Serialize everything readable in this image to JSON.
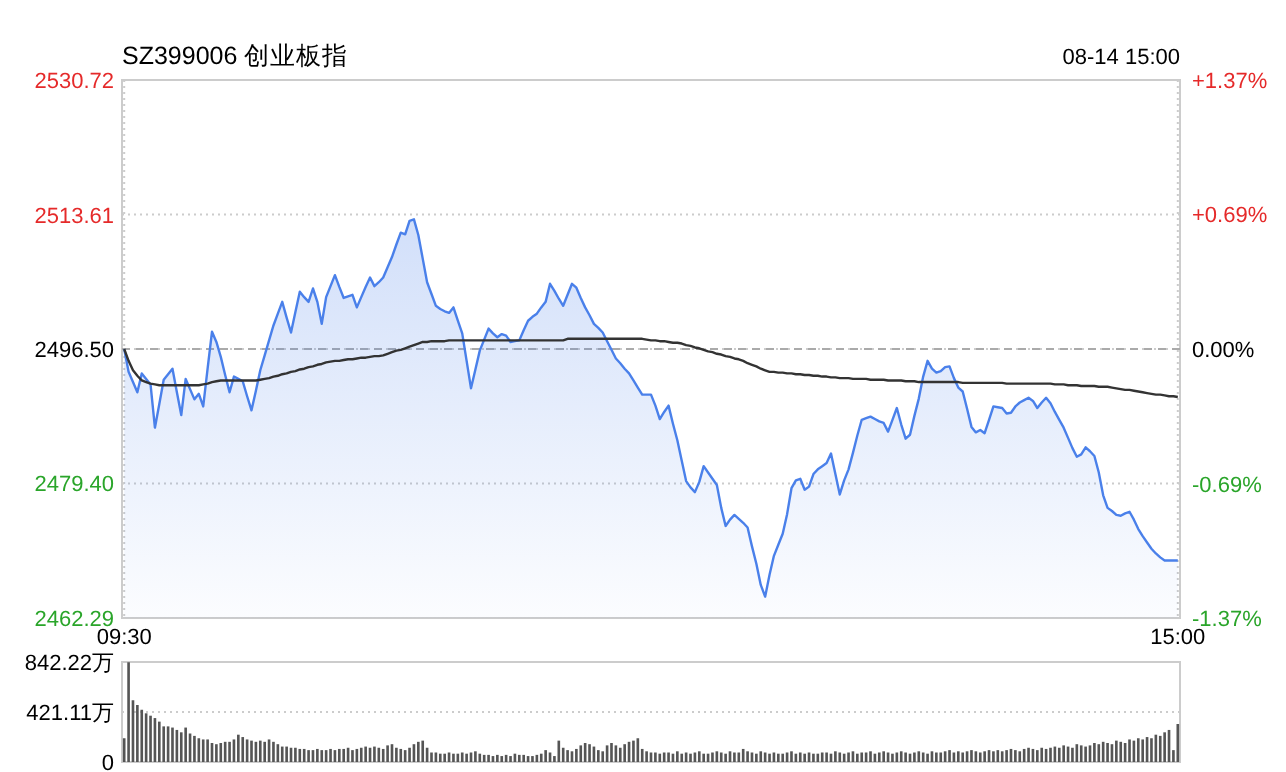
{
  "chart_data": [
    {
      "type": "area",
      "title": "SZ399006 创业板指",
      "annotations": [
        "08-14 15:00"
      ],
      "categories": [
        "09:30",
        null,
        null,
        null,
        null,
        null,
        null,
        null,
        null,
        null,
        null,
        null,
        null,
        null,
        null,
        null,
        null,
        null,
        null,
        null,
        null,
        null,
        null,
        null,
        null,
        null,
        null,
        null,
        null,
        null,
        null,
        null,
        null,
        null,
        null,
        null,
        null,
        null,
        null,
        null,
        null,
        null,
        null,
        null,
        null,
        null,
        null,
        null,
        null,
        null,
        null,
        null,
        null,
        null,
        null,
        null,
        null,
        null,
        null,
        null,
        null,
        null,
        null,
        null,
        null,
        null,
        null,
        null,
        null,
        null,
        null,
        null,
        null,
        null,
        null,
        null,
        null,
        null,
        null,
        null,
        null,
        null,
        null,
        null,
        null,
        null,
        null,
        null,
        null,
        null,
        null,
        null,
        null,
        null,
        null,
        null,
        null,
        null,
        null,
        null,
        null,
        null,
        null,
        null,
        null,
        null,
        null,
        null,
        null,
        null,
        null,
        null,
        null,
        null,
        null,
        null,
        null,
        null,
        null,
        null,
        null,
        null,
        null,
        null,
        null,
        null,
        null,
        null,
        null,
        null,
        null,
        null,
        null,
        null,
        null,
        null,
        null,
        null,
        null,
        null,
        null,
        null,
        null,
        null,
        null,
        null,
        null,
        null,
        null,
        null,
        null,
        null,
        null,
        null,
        null,
        null,
        null,
        null,
        null,
        null,
        null,
        null,
        null,
        null,
        null,
        null,
        null,
        null,
        null,
        null,
        null,
        null,
        null,
        null,
        null,
        null,
        null,
        null,
        null,
        null,
        null,
        null,
        null,
        null,
        null,
        null,
        null,
        null,
        null,
        null,
        null,
        null,
        null,
        null,
        null,
        null,
        null,
        null,
        null,
        null,
        null,
        null,
        null,
        null,
        null,
        null,
        null,
        null,
        null,
        null,
        null,
        null,
        null,
        null,
        null,
        null,
        null,
        null,
        null,
        null,
        null,
        null,
        null,
        null,
        null,
        null,
        null,
        null,
        null,
        null,
        null,
        null,
        null,
        null,
        null,
        null,
        null,
        null,
        null,
        null,
        "15:00"
      ],
      "ylim": [
        2462.29,
        2530.72
      ],
      "yticks": [
        2462.29,
        {
          "value": 2479.4,
          "label": "2479.40"
        },
        {
          "value": 2496.5,
          "label": "2496.50"
        },
        2513.61,
        2530.72
      ],
      "y2lim": [
        -1.37,
        1.37
      ],
      "y2ticks": [
        {
          "value": -1.37,
          "label": "-1.37%"
        },
        {
          "value": -0.69,
          "label": "-0.69%"
        },
        {
          "value": 0,
          "label": "0.00%"
        },
        {
          "value": 0.69,
          "label": "+0.69%"
        },
        {
          "value": 1.37,
          "label": "+1.37%"
        }
      ],
      "grid": true,
      "marker": "none",
      "ref_lines": [
        {
          "axis": "y",
          "value": 2496.5,
          "line_style": "dashed",
          "color": "#aaaaaa"
        }
      ],
      "series": [
        {
          "color": "#4a80ea",
          "values": [
            2496.5,
            2493.6,
            2492.3,
            2491.0,
            2493.4,
            2492.7,
            2492.0,
            2486.5,
            2489.5,
            2492.6,
            2493.3,
            2494.0,
            2491.0,
            2488.1,
            2492.7,
            2491.4,
            2490.1,
            2490.8,
            2489.2,
            2494.0,
            2498.7,
            2497.4,
            2495.5,
            2493.2,
            2491.0,
            2493.0,
            2492.7,
            2492.4,
            2490.5,
            2488.7,
            2491.2,
            2493.8,
            2495.7,
            2497.6,
            2499.5,
            2501.0,
            2502.5,
            2500.5,
            2498.6,
            2501.2,
            2503.8,
            2503.1,
            2502.5,
            2504.2,
            2502.5,
            2499.7,
            2503.1,
            2504.5,
            2505.9,
            2504.4,
            2503.0,
            2503.2,
            2503.4,
            2501.8,
            2503.1,
            2504.4,
            2505.6,
            2504.5,
            2505.0,
            2505.6,
            2506.9,
            2508.2,
            2509.8,
            2511.3,
            2511.1,
            2512.8,
            2513.0,
            2511.0,
            2508.0,
            2505.0,
            2503.5,
            2502.0,
            2501.6,
            2501.3,
            2501.1,
            2501.8,
            2500.1,
            2498.5,
            2495.0,
            2491.5,
            2493.9,
            2496.3,
            2497.7,
            2499.1,
            2498.5,
            2498.0,
            2498.4,
            2498.2,
            2497.4,
            2497.5,
            2497.6,
            2498.9,
            2500.1,
            2500.6,
            2501.0,
            2501.8,
            2502.5,
            2504.8,
            2503.9,
            2502.9,
            2502.0,
            2503.4,
            2504.8,
            2504.3,
            2503.0,
            2501.8,
            2500.8,
            2499.7,
            2499.2,
            2498.6,
            2497.5,
            2496.4,
            2495.3,
            2494.7,
            2494.0,
            2493.4,
            2492.5,
            2491.6,
            2490.7,
            2490.7,
            2490.7,
            2489.3,
            2487.6,
            2488.5,
            2489.3,
            2487.0,
            2484.9,
            2482.3,
            2479.7,
            2478.9,
            2478.3,
            2479.6,
            2481.6,
            2480.8,
            2480.0,
            2479.2,
            2476.3,
            2474.0,
            2474.8,
            2475.4,
            2474.9,
            2474.4,
            2473.8,
            2471.4,
            2469.2,
            2466.5,
            2465.0,
            2467.8,
            2470.2,
            2471.6,
            2473.0,
            2475.5,
            2478.8,
            2479.8,
            2480.0,
            2478.6,
            2479.0,
            2480.6,
            2481.2,
            2481.6,
            2482.0,
            2483.2,
            2480.6,
            2478.0,
            2479.8,
            2481.2,
            2483.3,
            2485.5,
            2487.5,
            2487.7,
            2487.9,
            2487.6,
            2487.3,
            2487.1,
            2486.0,
            2487.5,
            2489.0,
            2486.9,
            2485.1,
            2485.6,
            2488.0,
            2490.2,
            2493.0,
            2495.0,
            2494.0,
            2493.5,
            2493.7,
            2494.2,
            2494.3,
            2492.8,
            2491.6,
            2491.1,
            2488.9,
            2486.6,
            2485.9,
            2486.2,
            2485.8,
            2487.5,
            2489.2,
            2489.1,
            2489.0,
            2488.3,
            2488.4,
            2489.2,
            2489.7,
            2490.0,
            2490.3,
            2489.9,
            2489.0,
            2489.7,
            2490.3,
            2489.6,
            2488.5,
            2487.5,
            2486.5,
            2485.2,
            2483.9,
            2482.8,
            2483.1,
            2484.0,
            2483.5,
            2482.9,
            2480.8,
            2477.9,
            2476.3,
            2475.9,
            2475.4,
            2475.3,
            2475.6,
            2475.8,
            2474.8,
            2473.6,
            2472.7,
            2471.9,
            2471.1,
            2470.5,
            2470.0,
            2469.6,
            2469.6,
            2469.6,
            2469.6
          ]
        },
        {
          "type": "line",
          "color": "#333333",
          "values": [
            2496.5,
            2495.0,
            2493.8,
            2493.1,
            2492.5,
            2492.3,
            2492.1,
            2492.0,
            2491.9,
            2491.9,
            2491.9,
            2491.9,
            2491.9,
            2491.9,
            2491.9,
            2491.9,
            2491.9,
            2491.9,
            2492.0,
            2492.1,
            2492.3,
            2492.4,
            2492.5,
            2492.5,
            2492.5,
            2492.5,
            2492.5,
            2492.5,
            2492.5,
            2492.5,
            2492.5,
            2492.6,
            2492.7,
            2492.8,
            2493.0,
            2493.1,
            2493.3,
            2493.4,
            2493.6,
            2493.7,
            2493.9,
            2494.0,
            2494.2,
            2494.3,
            2494.5,
            2494.6,
            2494.8,
            2494.9,
            2495.0,
            2495.0,
            2495.1,
            2495.2,
            2495.2,
            2495.3,
            2495.4,
            2495.4,
            2495.5,
            2495.6,
            2495.6,
            2495.7,
            2495.9,
            2496.1,
            2496.3,
            2496.4,
            2496.6,
            2496.8,
            2497.0,
            2497.2,
            2497.4,
            2497.4,
            2497.5,
            2497.5,
            2497.5,
            2497.5,
            2497.6,
            2497.6,
            2497.6,
            2497.6,
            2497.6,
            2497.6,
            2497.6,
            2497.6,
            2497.6,
            2497.6,
            2497.6,
            2497.6,
            2497.6,
            2497.6,
            2497.6,
            2497.6,
            2497.6,
            2497.6,
            2497.6,
            2497.6,
            2497.6,
            2497.6,
            2497.6,
            2497.6,
            2497.6,
            2497.6,
            2497.6,
            2497.8,
            2497.8,
            2497.8,
            2497.8,
            2497.8,
            2497.8,
            2497.8,
            2497.8,
            2497.8,
            2497.8,
            2497.8,
            2497.8,
            2497.8,
            2497.8,
            2497.8,
            2497.8,
            2497.8,
            2497.8,
            2497.7,
            2497.6,
            2497.6,
            2497.5,
            2497.5,
            2497.4,
            2497.3,
            2497.3,
            2497.2,
            2497.0,
            2496.9,
            2496.7,
            2496.6,
            2496.4,
            2496.2,
            2496.1,
            2495.9,
            2495.8,
            2495.6,
            2495.5,
            2495.3,
            2495.2,
            2495.0,
            2494.7,
            2494.5,
            2494.3,
            2494.0,
            2493.8,
            2493.6,
            2493.6,
            2493.5,
            2493.5,
            2493.4,
            2493.4,
            2493.3,
            2493.3,
            2493.2,
            2493.2,
            2493.1,
            2493.1,
            2493.0,
            2493.0,
            2492.9,
            2492.9,
            2492.8,
            2492.8,
            2492.8,
            2492.7,
            2492.7,
            2492.7,
            2492.7,
            2492.6,
            2492.6,
            2492.6,
            2492.6,
            2492.5,
            2492.5,
            2492.5,
            2492.5,
            2492.4,
            2492.4,
            2492.4,
            2492.3,
            2492.3,
            2492.3,
            2492.3,
            2492.3,
            2492.3,
            2492.3,
            2492.3,
            2492.3,
            2492.3,
            2492.2,
            2492.2,
            2492.2,
            2492.2,
            2492.2,
            2492.2,
            2492.2,
            2492.2,
            2492.2,
            2492.2,
            2492.1,
            2492.1,
            2492.1,
            2492.1,
            2492.1,
            2492.1,
            2492.1,
            2492.1,
            2492.1,
            2492.1,
            2492.1,
            2492.0,
            2492.0,
            2492.0,
            2491.9,
            2491.9,
            2491.9,
            2491.8,
            2491.8,
            2491.8,
            2491.8,
            2491.7,
            2491.7,
            2491.7,
            2491.6,
            2491.5,
            2491.4,
            2491.3,
            2491.3,
            2491.2,
            2491.1,
            2491.0,
            2490.9,
            2490.8,
            2490.7,
            2490.7,
            2490.6,
            2490.5,
            2490.5,
            2490.4
          ]
        }
      ]
    },
    {
      "type": "bar",
      "color": "#555555",
      "grid": "y",
      "tick_labels": "y",
      "ylim": [
        0,
        842.22
      ],
      "yticks": [
        0,
        {
          "value": 421.11,
          "label": "421.11万"
        },
        {
          "value": 842.22,
          "label": "842.22万"
        }
      ],
      "categories": [
        null,
        null,
        null,
        null,
        null,
        null,
        null,
        null,
        null,
        null,
        null,
        null,
        null,
        null,
        null,
        null,
        null,
        null,
        null,
        null,
        null,
        null,
        null,
        null,
        null,
        null,
        null,
        null,
        null,
        null,
        null,
        null,
        null,
        null,
        null,
        null,
        null,
        null,
        null,
        null,
        null,
        null,
        null,
        null,
        null,
        null,
        null,
        null,
        null,
        null,
        null,
        null,
        null,
        null,
        null,
        null,
        null,
        null,
        null,
        null,
        null,
        null,
        null,
        null,
        null,
        null,
        null,
        null,
        null,
        null,
        null,
        null,
        null,
        null,
        null,
        null,
        null,
        null,
        null,
        null,
        null,
        null,
        null,
        null,
        null,
        null,
        null,
        null,
        null,
        null,
        null,
        null,
        null,
        null,
        null,
        null,
        null,
        null,
        null,
        null,
        null,
        null,
        null,
        null,
        null,
        null,
        null,
        null,
        null,
        null,
        null,
        null,
        null,
        null,
        null,
        null,
        null,
        null,
        null,
        null,
        null,
        null,
        null,
        null,
        null,
        null,
        null,
        null,
        null,
        null,
        null,
        null,
        null,
        null,
        null,
        null,
        null,
        null,
        null,
        null,
        null,
        null,
        null,
        null,
        null,
        null,
        null,
        null,
        null,
        null,
        null,
        null,
        null,
        null,
        null,
        null,
        null,
        null,
        null,
        null,
        null,
        null,
        null,
        null,
        null,
        null,
        null,
        null,
        null,
        null,
        null,
        null,
        null,
        null,
        null,
        null,
        null,
        null,
        null,
        null,
        null,
        null,
        null,
        null,
        null,
        null,
        null,
        null,
        null,
        null,
        null,
        null,
        null,
        null,
        null,
        null,
        null,
        null,
        null,
        null,
        null,
        null,
        null,
        null,
        null,
        null,
        null,
        null,
        null,
        null,
        null,
        null,
        null,
        null,
        null,
        null,
        null,
        null,
        null,
        null,
        null,
        null,
        null,
        null,
        null,
        null,
        null,
        null,
        null,
        null,
        null,
        null,
        null,
        null,
        null,
        null,
        null,
        null,
        null,
        null,
        null
      ],
      "values": [
        200,
        840,
        520,
        480,
        440,
        410,
        390,
        370,
        340,
        300,
        300,
        290,
        270,
        250,
        290,
        240,
        220,
        200,
        190,
        190,
        160,
        150,
        160,
        170,
        170,
        190,
        230,
        210,
        190,
        180,
        170,
        180,
        170,
        190,
        170,
        150,
        130,
        130,
        120,
        120,
        110,
        110,
        100,
        100,
        110,
        100,
        100,
        110,
        100,
        110,
        110,
        120,
        100,
        110,
        120,
        130,
        120,
        130,
        120,
        110,
        140,
        150,
        120,
        110,
        100,
        120,
        150,
        170,
        180,
        120,
        80,
        80,
        70,
        70,
        80,
        70,
        70,
        80,
        70,
        80,
        90,
        70,
        60,
        60,
        50,
        60,
        50,
        60,
        50,
        70,
        60,
        60,
        50,
        50,
        60,
        70,
        100,
        80,
        50,
        180,
        120,
        100,
        90,
        110,
        140,
        160,
        150,
        130,
        100,
        90,
        140,
        160,
        140,
        120,
        150,
        170,
        180,
        200,
        110,
        90,
        80,
        80,
        70,
        80,
        80,
        70,
        90,
        70,
        80,
        70,
        80,
        90,
        70,
        70,
        80,
        90,
        80,
        70,
        90,
        80,
        80,
        110,
        90,
        80,
        70,
        90,
        80,
        70,
        80,
        70,
        70,
        80,
        90,
        70,
        80,
        70,
        80,
        70,
        70,
        80,
        80,
        70,
        90,
        80,
        70,
        80,
        90,
        70,
        80,
        80,
        90,
        70,
        80,
        90,
        80,
        70,
        80,
        90,
        80,
        70,
        80,
        90,
        80,
        70,
        90,
        80,
        80,
        90,
        100,
        80,
        90,
        80,
        90,
        100,
        90,
        80,
        90,
        100,
        90,
        100,
        90,
        100,
        110,
        100,
        90,
        110,
        120,
        110,
        100,
        120,
        110,
        120,
        130,
        120,
        140,
        130,
        120,
        150,
        140,
        130,
        140,
        160,
        150,
        170,
        160,
        150,
        180,
        170,
        160,
        190,
        180,
        200,
        190,
        210,
        200,
        230,
        220,
        250,
        270,
        100,
        320
      ]
    }
  ]
}
